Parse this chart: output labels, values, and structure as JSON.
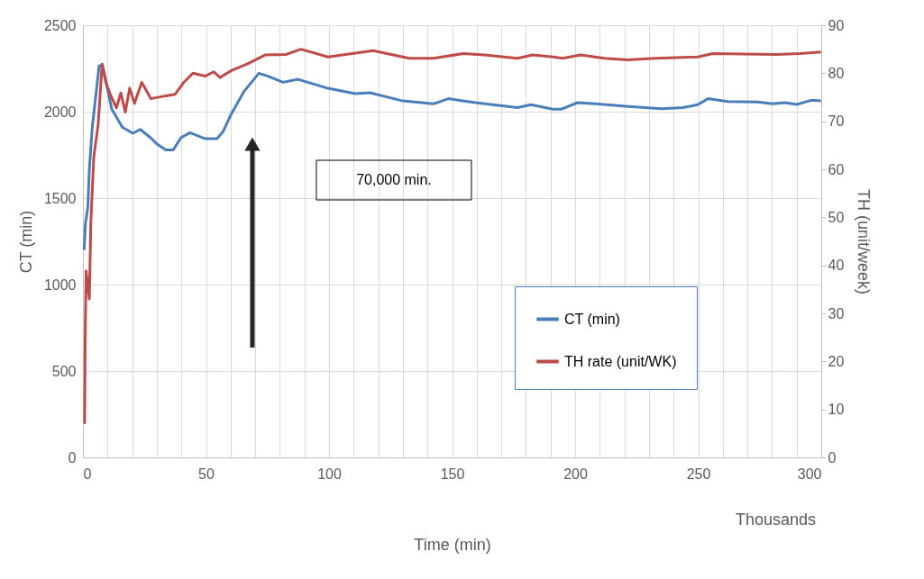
{
  "chart_data": {
    "type": "line",
    "xlabel": "Time (min)",
    "ylabel": "CT (min)",
    "y2label": "TH (unit/week)",
    "xlim": [
      0,
      300
    ],
    "xticks": [
      0,
      {
        "value": 10,
        "label": null
      },
      {
        "value": 20,
        "label": null
      },
      {
        "value": 30,
        "label": null
      },
      {
        "value": 40,
        "label": null
      },
      50,
      {
        "value": 60,
        "label": null
      },
      {
        "value": 70,
        "label": null
      },
      {
        "value": 80,
        "label": null
      },
      {
        "value": 90,
        "label": null
      },
      100,
      {
        "value": 110,
        "label": null
      },
      {
        "value": 120,
        "label": null
      },
      {
        "value": 130,
        "label": null
      },
      {
        "value": 140,
        "label": null
      },
      150,
      {
        "value": 160,
        "label": null
      },
      {
        "value": 170,
        "label": null
      },
      {
        "value": 180,
        "label": null
      },
      {
        "value": 190,
        "label": null
      },
      200,
      {
        "value": 210,
        "label": null
      },
      {
        "value": 220,
        "label": null
      },
      {
        "value": 230,
        "label": null
      },
      {
        "value": 240,
        "label": null
      },
      250,
      {
        "value": 260,
        "label": null
      },
      {
        "value": 270,
        "label": null
      },
      {
        "value": 280,
        "label": null
      },
      {
        "value": 290,
        "label": null
      },
      300
    ],
    "ylim": [
      0,
      2500
    ],
    "yticks": [
      0,
      500,
      1000,
      1500,
      2000,
      2500
    ],
    "y2lim": [
      0,
      90
    ],
    "y2ticks": [
      0,
      10,
      20,
      30,
      40,
      50,
      60,
      70,
      80,
      90
    ],
    "grid": true,
    "legend": "right",
    "line_style": "solid",
    "marker": "none",
    "series": [
      {
        "name": "CT (min)",
        "color": "#4a7ebb",
        "x": [
          0.5,
          1,
          2,
          2.6,
          3.8,
          6.6,
          8,
          11.7,
          16,
          20.3,
          23.3,
          27.5,
          30,
          33.7,
          36.7,
          39.8,
          43.5,
          49.5,
          54.5,
          56.9,
          60,
          65.5,
          71.5,
          75.2,
          81.3,
          87.4,
          99.6,
          110.6,
          116.7,
          130,
          142.4,
          148.5,
          159.5,
          176.6,
          182,
          191,
          194.3,
          201,
          208.3,
          220.5,
          235.2,
          243.7,
          249.8,
          254,
          262,
          274.2,
          280.3,
          285.2,
          290,
          296,
          299.9
        ],
        "values": [
          1200,
          1350,
          1450,
          1667,
          1910,
          2266,
          2266,
          2015,
          1910,
          1875,
          1897,
          1849,
          1814,
          1779,
          1779,
          1849,
          1878,
          1844,
          1844,
          1884,
          1979,
          2118,
          2222,
          2205,
          2170,
          2187,
          2135,
          2104,
          2109,
          2062,
          2045,
          2075,
          2052,
          2023,
          2040,
          2014,
          2014,
          2052,
          2045,
          2031,
          2017,
          2023,
          2040,
          2075,
          2059,
          2056,
          2045,
          2052,
          2042,
          2066,
          2062
        ]
      },
      {
        "name": "TH rate (unit/WK)",
        "color": "#be4b48",
        "axis": "y2",
        "x": [
          0.7,
          0.9,
          1,
          1.3,
          2.6,
          3.2,
          4.4,
          6.2,
          7.8,
          9.3,
          11.1,
          13.6,
          15.4,
          17.2,
          19,
          20.9,
          23.9,
          27.6,
          33.7,
          37.4,
          41,
          44.7,
          49.6,
          53.2,
          55.7,
          60.5,
          66.7,
          74,
          82.5,
          88.6,
          99.6,
          117.9,
          132.6,
          142.4,
          154.6,
          163.1,
          176.6,
          182.7,
          191.2,
          194.9,
          202.2,
          212,
          221.1,
          232.7,
          249.8,
          255.9,
          281.6,
          291.3,
          299.9
        ],
        "values": [
          7,
          23,
          27.5,
          38.8,
          33,
          48.8,
          62.5,
          69.4,
          81.9,
          78.1,
          75.6,
          72.8,
          75.9,
          71.9,
          76.9,
          73.7,
          78.1,
          74.7,
          75.3,
          75.6,
          78.1,
          80,
          79.4,
          80.3,
          79.1,
          80.6,
          81.9,
          83.8,
          83.9,
          85,
          83.4,
          84.7,
          83.1,
          83.1,
          84.1,
          83.8,
          83.1,
          83.8,
          83.4,
          83.1,
          83.8,
          83.1,
          82.8,
          83.1,
          83.4,
          84.1,
          83.9,
          84.1,
          84.4
        ]
      }
    ],
    "annotations": [
      "70,000 min.",
      "Thousands"
    ]
  }
}
